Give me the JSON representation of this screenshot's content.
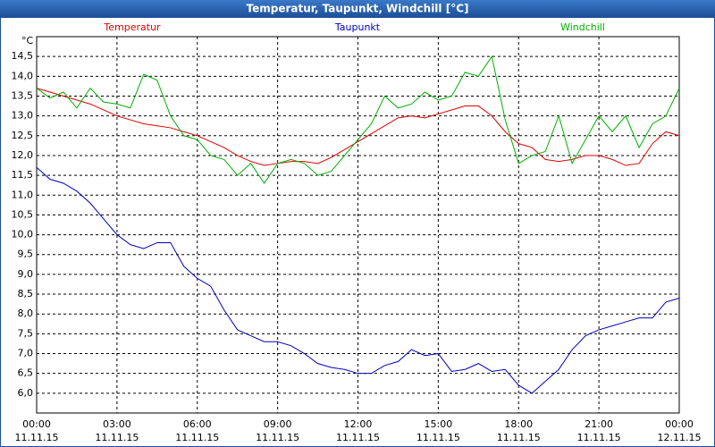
{
  "chart_data": {
    "type": "line",
    "title": "Temperatur, Taupunkt, Windchill [°C]",
    "y_label": "°C",
    "grid": true,
    "x": [
      0,
      0.5,
      1,
      1.5,
      2,
      2.5,
      3,
      3.5,
      4,
      4.5,
      5,
      5.5,
      6,
      6.5,
      7,
      7.5,
      8,
      8.5,
      9,
      9.5,
      10,
      10.5,
      11,
      11.5,
      12,
      12.5,
      13,
      13.5,
      14,
      14.5,
      15,
      15.5,
      16,
      16.5,
      17,
      17.5,
      18,
      18.5,
      19,
      19.5,
      20,
      20.5,
      21,
      21.5,
      22,
      22.5,
      23,
      23.5,
      24
    ],
    "xlim": [
      0,
      24
    ],
    "xticks": [
      {
        "value": 0,
        "label": "00:00"
      },
      {
        "value": 3,
        "label": "03:00"
      },
      {
        "value": 6,
        "label": "06:00"
      },
      {
        "value": 9,
        "label": "09:00"
      },
      {
        "value": 12,
        "label": "12:00"
      },
      {
        "value": 15,
        "label": "15:00"
      },
      {
        "value": 18,
        "label": "18:00"
      },
      {
        "value": 21,
        "label": "21:00"
      },
      {
        "value": 24,
        "label": "00:00"
      }
    ],
    "xtick_dates": [
      "11.11.15",
      "11.11.15",
      "11.11.15",
      "11.11.15",
      "11.11.15",
      "11.11.15",
      "11.11.15",
      "11.11.15",
      "12.11.15"
    ],
    "ylim": [
      5.5,
      15
    ],
    "yticks": [
      {
        "value": 6,
        "label": "6,0"
      },
      {
        "value": 6.5,
        "label": "6,5"
      },
      {
        "value": 7,
        "label": "7,0"
      },
      {
        "value": 7.5,
        "label": "7,5"
      },
      {
        "value": 8,
        "label": "8,0"
      },
      {
        "value": 8.5,
        "label": "8,5"
      },
      {
        "value": 9,
        "label": "9,0"
      },
      {
        "value": 9.5,
        "label": "9,5"
      },
      {
        "value": 10,
        "label": "10,0"
      },
      {
        "value": 10.5,
        "label": "10,5"
      },
      {
        "value": 11,
        "label": "11,0"
      },
      {
        "value": 11.5,
        "label": "11,5"
      },
      {
        "value": 12,
        "label": "12,0"
      },
      {
        "value": 12.5,
        "label": "12,5"
      },
      {
        "value": 13,
        "label": "13,0"
      },
      {
        "value": 13.5,
        "label": "13,5"
      },
      {
        "value": 14,
        "label": "14,0"
      },
      {
        "value": 14.5,
        "label": "14,5"
      }
    ],
    "series": [
      {
        "name": "Temperatur",
        "color": "#e00000",
        "values": [
          13.7,
          13.6,
          13.5,
          13.4,
          13.3,
          13.15,
          13.0,
          12.9,
          12.8,
          12.75,
          12.7,
          12.6,
          12.5,
          12.35,
          12.2,
          12.0,
          11.85,
          11.75,
          11.8,
          11.85,
          11.85,
          11.8,
          11.95,
          12.15,
          12.35,
          12.55,
          12.75,
          12.95,
          13.0,
          12.95,
          13.05,
          13.15,
          13.25,
          13.25,
          13.0,
          12.6,
          12.3,
          12.2,
          11.9,
          11.85,
          11.9,
          12.0,
          12.0,
          11.9,
          11.75,
          11.8,
          12.3,
          12.6,
          12.5
        ]
      },
      {
        "name": "Taupunkt",
        "color": "#0000c0",
        "values": [
          11.7,
          11.4,
          11.3,
          11.1,
          10.8,
          10.4,
          10.0,
          9.75,
          9.65,
          9.8,
          9.8,
          9.2,
          8.9,
          8.7,
          8.1,
          7.6,
          7.45,
          7.3,
          7.3,
          7.2,
          7.0,
          6.75,
          6.65,
          6.6,
          6.5,
          6.5,
          6.7,
          6.8,
          7.1,
          6.95,
          7.0,
          6.55,
          6.6,
          6.75,
          6.55,
          6.6,
          6.2,
          6.0,
          6.3,
          6.6,
          7.1,
          7.45,
          7.6,
          7.7,
          7.8,
          7.9,
          7.9,
          8.3,
          8.4
        ]
      },
      {
        "name": "Windchill",
        "color": "#00b000",
        "values": [
          13.7,
          13.45,
          13.6,
          13.2,
          13.7,
          13.35,
          13.3,
          13.2,
          14.05,
          13.9,
          13.0,
          12.5,
          12.4,
          12.0,
          11.9,
          11.5,
          11.8,
          11.3,
          11.8,
          11.9,
          11.8,
          11.5,
          11.6,
          12.0,
          12.4,
          12.8,
          13.5,
          13.2,
          13.3,
          13.6,
          13.4,
          13.5,
          14.1,
          14.0,
          14.5,
          12.9,
          11.8,
          12.0,
          12.1,
          13.0,
          11.8,
          12.4,
          13.0,
          12.6,
          13.0,
          12.2,
          12.8,
          13.0,
          13.7
        ]
      }
    ]
  }
}
